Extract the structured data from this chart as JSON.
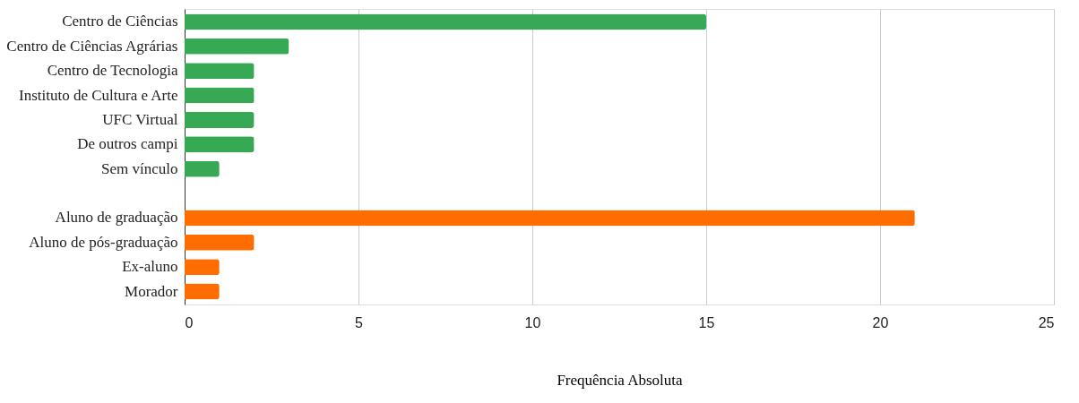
{
  "chart_data": {
    "type": "bar",
    "orientation": "horizontal",
    "categories": [
      "Centro de Ciências",
      "Centro de Ciências Agrárias",
      "Centro de Tecnologia",
      "Instituto de Cultura e Arte",
      "UFC Virtual",
      "De outros campi",
      "Sem vínculo",
      null,
      "Aluno de graduação",
      "Aluno de pós-graduação",
      "Ex-aluno",
      "Morador"
    ],
    "values": [
      15,
      3,
      2,
      2,
      2,
      2,
      1,
      null,
      21,
      2,
      1,
      1
    ],
    "colors": [
      "#37a853",
      "#37a853",
      "#37a853",
      "#37a853",
      "#37a853",
      "#37a853",
      "#37a853",
      null,
      "#ff6d00",
      "#ff6d00",
      "#ff6d00",
      "#ff6d00"
    ],
    "xlabel": "Frequência Absoluta",
    "xlim": [
      0,
      25
    ],
    "xticks": [
      0,
      5,
      10,
      15,
      20,
      25
    ],
    "grid": "x"
  }
}
